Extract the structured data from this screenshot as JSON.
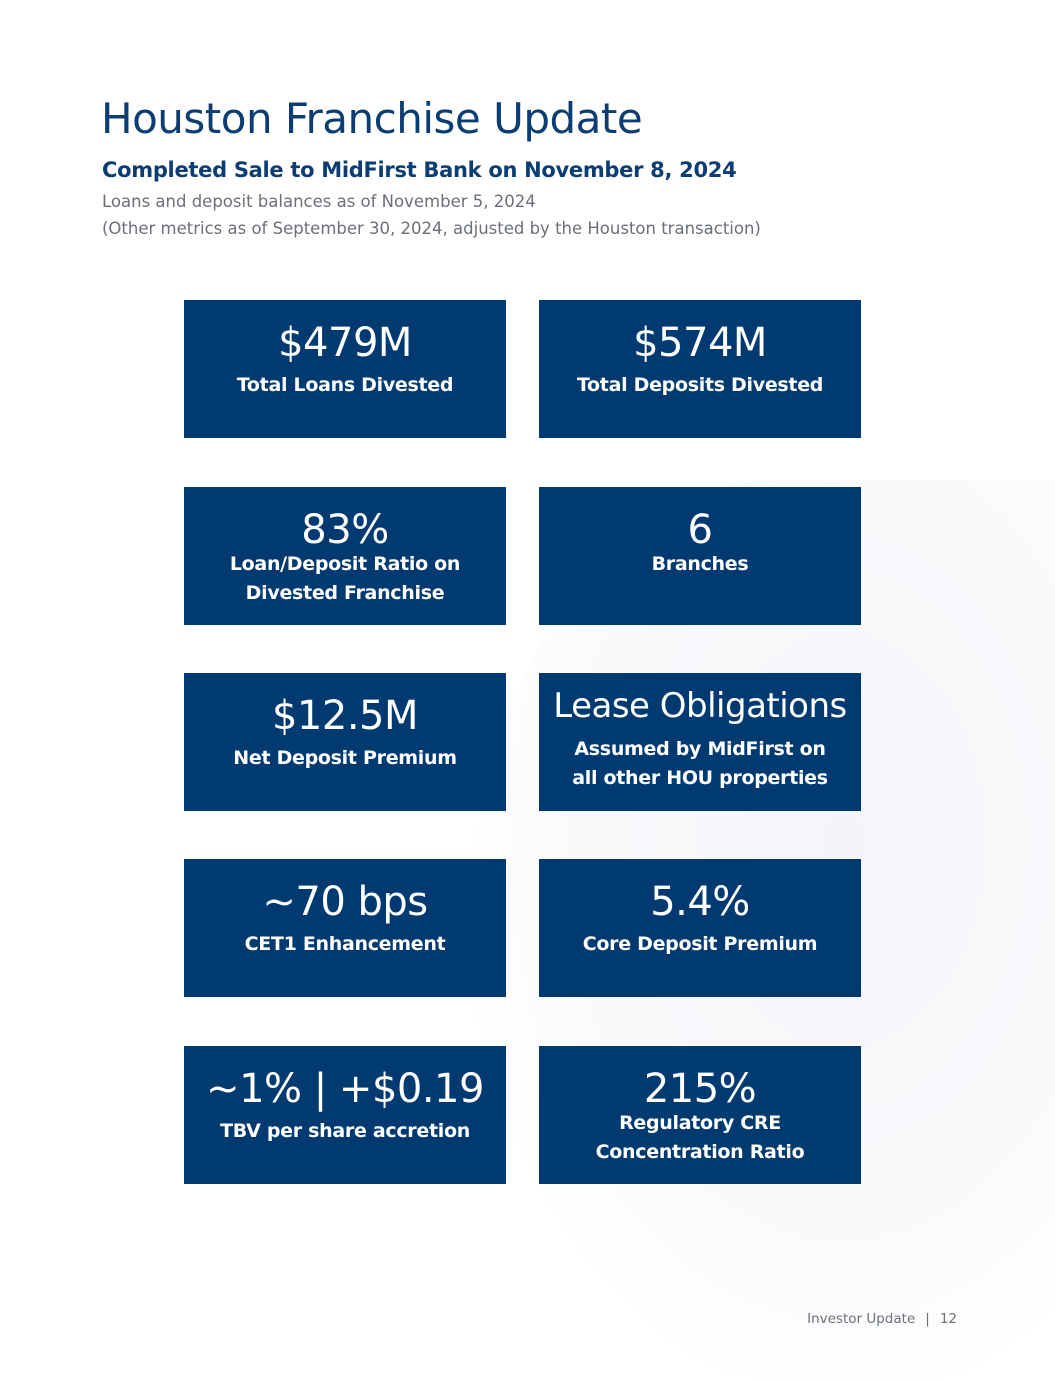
{
  "header": {
    "title": "Houston Franchise Update",
    "subtitle": "Completed Sale to MidFirst Bank on November 8, 2024",
    "note_1": "Loans and deposit balances as of November 5, 2024",
    "note_2": "(Other metrics as of September 30, 2024, adjusted by the Houston transaction)"
  },
  "tiles": [
    {
      "value": "$479M",
      "label": "Total Loans Divested"
    },
    {
      "value": "$574M",
      "label": "Total Deposits Divested"
    },
    {
      "value": "83%",
      "label_line_1": "Loan/Deposit Ratio on",
      "label_line_2": "Divested Franchise"
    },
    {
      "value": "6",
      "label": "Branches"
    },
    {
      "value": "$12.5M",
      "label": "Net Deposit Premium"
    },
    {
      "value": "Lease Obligations",
      "label_line_1": "Assumed by MidFirst on",
      "label_line_2": "all other HOU properties"
    },
    {
      "value": "~70 bps",
      "label": "CET1 Enhancement"
    },
    {
      "value": "5.4%",
      "label": "Core Deposit Premium"
    },
    {
      "value": "~1% | +$0.19",
      "label": "TBV per share accretion"
    },
    {
      "value": "215%",
      "label_line_1": "Regulatory CRE",
      "label_line_2": "Concentration Ratio"
    }
  ],
  "colors": {
    "tile_background": "#003a70",
    "title_color": "#0b3d72",
    "muted_text": "#6b7078"
  },
  "footer": {
    "label": "Investor Update",
    "separator": "|",
    "page_number": "12"
  }
}
